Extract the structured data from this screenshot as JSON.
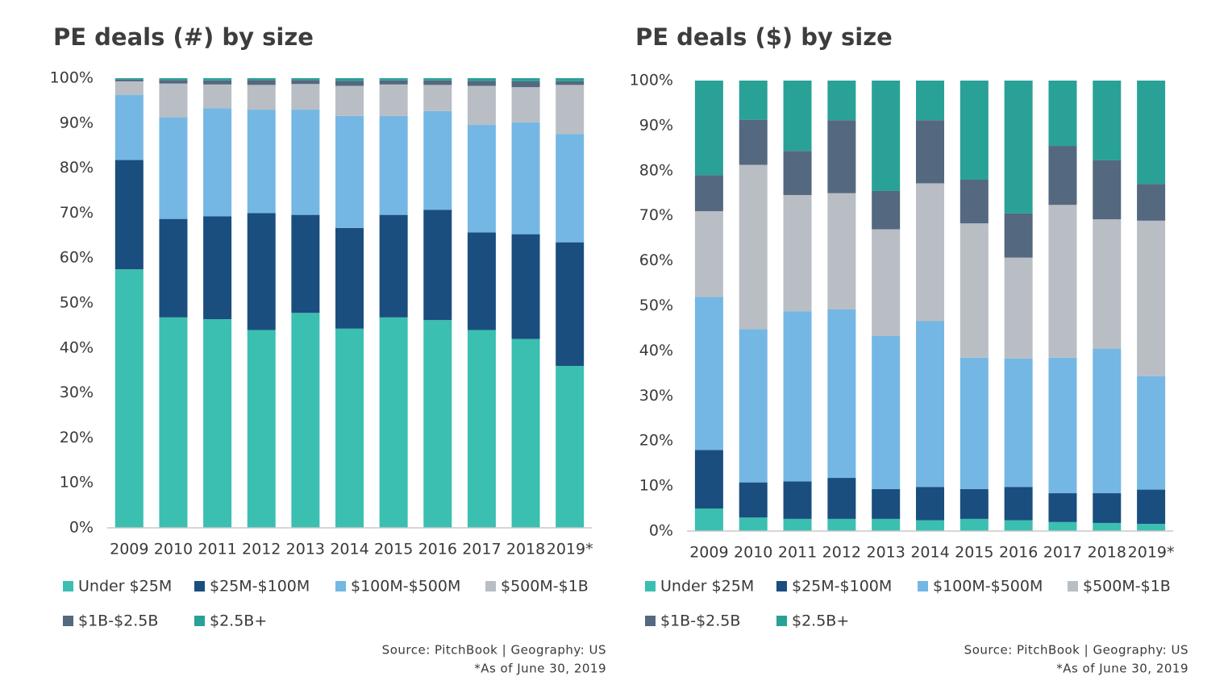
{
  "chart_data": [
    {
      "type": "stacked_bar_percent",
      "title": "PE deals (#) by size",
      "categories": [
        "2009",
        "2010",
        "2011",
        "2012",
        "2013",
        "2014",
        "2015",
        "2016",
        "2017",
        "2018",
        "2019*"
      ],
      "series": [
        {
          "name": "Under $25M",
          "color": "#3bbfb0",
          "values": [
            57.5,
            46.8,
            46.4,
            44,
            47.8,
            44.3,
            46.8,
            46.2,
            44,
            42,
            36
          ]
        },
        {
          "name": "$25M-$100M",
          "color": "#1a4e7e",
          "values": [
            24.3,
            21.9,
            22.9,
            26,
            21.8,
            22.4,
            22.8,
            24.5,
            21.7,
            23.3,
            27.5
          ]
        },
        {
          "name": "$100M-$500M",
          "color": "#74b7e4",
          "values": [
            14.5,
            22.6,
            24,
            23,
            23.4,
            24.9,
            22,
            22,
            23.9,
            24.9,
            24.1
          ]
        },
        {
          "name": "$500M-$1B",
          "color": "#b8bec4",
          "values": [
            3,
            7.5,
            5.3,
            5.5,
            5.7,
            6.7,
            7,
            5.8,
            8.7,
            7.8,
            10.9
          ]
        },
        {
          "name": "$1B-$2.5B",
          "color": "#54687f",
          "values": [
            0.4,
            0.8,
            0.9,
            1.1,
            0.9,
            1.1,
            0.9,
            1,
            1.1,
            1.3,
            0.8
          ]
        },
        {
          "name": "$2.5B+",
          "color": "#2aa197",
          "values": [
            0.3,
            0.4,
            0.5,
            0.4,
            0.4,
            0.6,
            0.5,
            0.5,
            0.6,
            0.7,
            0.7
          ]
        }
      ],
      "ylim": [
        0,
        100
      ],
      "yticks": [
        {
          "value": 0,
          "label": "0%"
        },
        {
          "value": 10,
          "label": "10%"
        },
        {
          "value": 20,
          "label": "20%"
        },
        {
          "value": 30,
          "label": "30%"
        },
        {
          "value": 40,
          "label": "40%"
        },
        {
          "value": 50,
          "label": "50%"
        },
        {
          "value": 60,
          "label": "60%"
        },
        {
          "value": 70,
          "label": "70%"
        },
        {
          "value": 80,
          "label": "80%"
        },
        {
          "value": 90,
          "label": "90%"
        },
        {
          "value": 100,
          "label": "100%"
        }
      ],
      "source": "Source: PitchBook | Geography: US",
      "note": "*As of June 30, 2019"
    },
    {
      "type": "stacked_bar_percent",
      "title": "PE deals ($) by size",
      "categories": [
        "2009",
        "2010",
        "2011",
        "2012",
        "2013",
        "2014",
        "2015",
        "2016",
        "2017",
        "2018",
        "2019*"
      ],
      "series": [
        {
          "name": "Under $25M",
          "color": "#3bbfb0",
          "values": [
            5,
            3,
            2.7,
            2.7,
            2.7,
            2.4,
            2.7,
            2.4,
            2,
            1.8,
            1.6
          ]
        },
        {
          "name": "$25M-$100M",
          "color": "#1a4e7e",
          "values": [
            13,
            7.8,
            8.3,
            9.1,
            6.6,
            7.4,
            6.6,
            7.4,
            6.4,
            6.6,
            7.6
          ]
        },
        {
          "name": "$100M-$500M",
          "color": "#74b7e4",
          "values": [
            34,
            34,
            37.8,
            37.4,
            34,
            36.8,
            29.2,
            28.5,
            30.1,
            32.1,
            25.2
          ]
        },
        {
          "name": "$500M-$1B",
          "color": "#b8bec4",
          "values": [
            19,
            36.5,
            25.8,
            25.8,
            23.7,
            30.6,
            29.8,
            22.4,
            33.9,
            28.7,
            34.5
          ]
        },
        {
          "name": "$1B-$2.5B",
          "color": "#54687f",
          "values": [
            8,
            10,
            9.8,
            16.2,
            8.5,
            14,
            9.7,
            9.8,
            13.1,
            13.1,
            8.1
          ]
        },
        {
          "name": "$2.5B+",
          "color": "#2aa197",
          "values": [
            21,
            8.7,
            15.6,
            8.8,
            24.5,
            8.8,
            22,
            29.5,
            14.5,
            17.7,
            23
          ]
        }
      ],
      "ylim": [
        0,
        100
      ],
      "yticks": [
        {
          "value": 0,
          "label": "0%"
        },
        {
          "value": 10,
          "label": "10%"
        },
        {
          "value": 20,
          "label": "20%"
        },
        {
          "value": 30,
          "label": "30%"
        },
        {
          "value": 40,
          "label": "40%"
        },
        {
          "value": 50,
          "label": "50%"
        },
        {
          "value": 60,
          "label": "60%"
        },
        {
          "value": 70,
          "label": "70%"
        },
        {
          "value": 80,
          "label": "80%"
        },
        {
          "value": 90,
          "label": "90%"
        },
        {
          "value": 100,
          "label": "100%"
        }
      ],
      "source": "Source: PitchBook | Geography: US",
      "note": "*As of June 30, 2019"
    }
  ]
}
